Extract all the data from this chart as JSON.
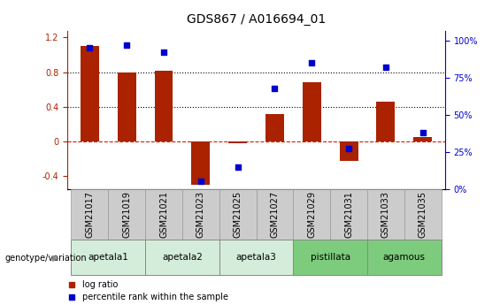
{
  "title": "GDS867 / A016694_01",
  "samples": [
    "GSM21017",
    "GSM21019",
    "GSM21021",
    "GSM21023",
    "GSM21025",
    "GSM21027",
    "GSM21029",
    "GSM21031",
    "GSM21033",
    "GSM21035"
  ],
  "log_ratio": [
    1.1,
    0.8,
    0.82,
    -0.5,
    -0.02,
    0.32,
    0.68,
    -0.22,
    0.46,
    0.05
  ],
  "percentile_rank": [
    95,
    97,
    92,
    5,
    15,
    68,
    85,
    27,
    82,
    38
  ],
  "groups": [
    {
      "name": "apetala1",
      "indices": [
        0,
        1
      ],
      "color": "#d4edda"
    },
    {
      "name": "apetala2",
      "indices": [
        2,
        3
      ],
      "color": "#d4edda"
    },
    {
      "name": "apetala3",
      "indices": [
        4,
        5
      ],
      "color": "#d4edda"
    },
    {
      "name": "pistillata",
      "indices": [
        6,
        7
      ],
      "color": "#7dcc7d"
    },
    {
      "name": "agamous",
      "indices": [
        8,
        9
      ],
      "color": "#7dcc7d"
    }
  ],
  "bar_color": "#aa2200",
  "dot_color": "#0000cc",
  "ylim_left": [
    -0.55,
    1.28
  ],
  "ylim_right": [
    0,
    106.67
  ],
  "yticks_left": [
    -0.4,
    0.0,
    0.4,
    0.8,
    1.2
  ],
  "ytick_labels_left": [
    "-0.4",
    "0",
    "0.4",
    "0.8",
    "1.2"
  ],
  "yticks_right": [
    0,
    25,
    50,
    75,
    100
  ],
  "ytick_labels_right": [
    "0%",
    "25%",
    "50%",
    "75%",
    "100%"
  ],
  "hlines_dotted": [
    0.4,
    0.8
  ],
  "hline_dashed_color": "#cc2200",
  "legend_log_ratio": "log ratio",
  "legend_percentile": "percentile rank within the sample",
  "genotype_label": "genotype/variation",
  "title_fontsize": 10,
  "tick_fontsize": 7,
  "sample_box_color": "#cccccc",
  "sample_box_edge": "#999999"
}
